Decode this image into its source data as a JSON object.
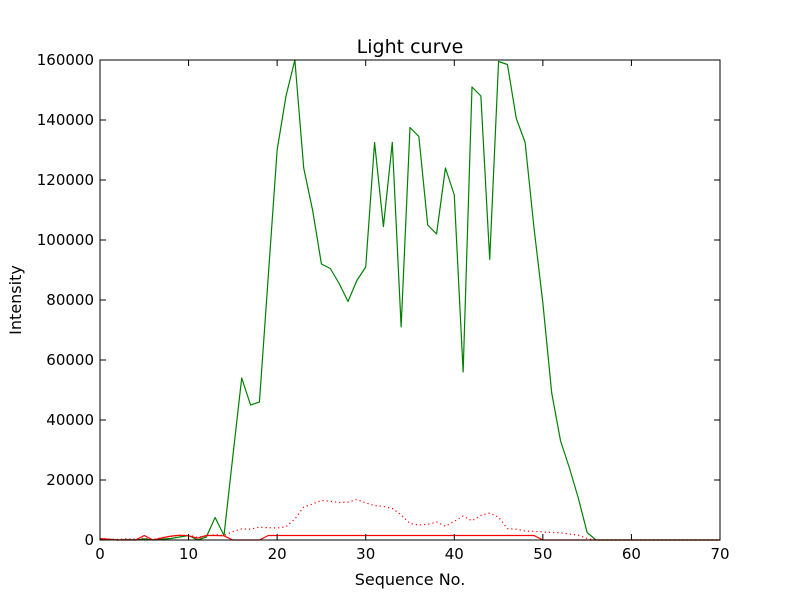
{
  "chart_data": {
    "type": "line",
    "title": "Light curve",
    "xlabel": "Sequence No.",
    "ylabel": "Intensity",
    "xlim": [
      0,
      70
    ],
    "ylim": [
      0,
      160000
    ],
    "x_ticks": [
      0,
      10,
      20,
      30,
      40,
      50,
      60,
      70
    ],
    "y_ticks": [
      0,
      20000,
      40000,
      60000,
      80000,
      100000,
      120000,
      140000,
      160000
    ],
    "grid": false,
    "legend": "none",
    "series": [
      {
        "color": "#008000",
        "style": "solid",
        "x": [
          0,
          1,
          2,
          3,
          4,
          5,
          6,
          7,
          8,
          9,
          10,
          11,
          12,
          13,
          14,
          15,
          16,
          17,
          18,
          19,
          20,
          21,
          22,
          23,
          24,
          25,
          26,
          27,
          28,
          29,
          30,
          31,
          32,
          33,
          34,
          35,
          36,
          37,
          38,
          39,
          40,
          41,
          42,
          43,
          44,
          45,
          46,
          47,
          48,
          49,
          50,
          51,
          52,
          53,
          54,
          55,
          56,
          57,
          58,
          59,
          60,
          61,
          62,
          63,
          64,
          65,
          66,
          67,
          68,
          69,
          70
        ],
        "y": [
          200,
          300,
          0,
          100,
          0,
          400,
          0,
          300,
          500,
          1000,
          1500,
          0,
          1000,
          7500,
          1500,
          28000,
          54000,
          45000,
          46000,
          88000,
          130000,
          148000,
          160000,
          124000,
          110000,
          92000,
          90500,
          85500,
          79500,
          86500,
          91000,
          132500,
          104500,
          132500,
          71000,
          137500,
          134500,
          105000,
          102000,
          124000,
          115000,
          56000,
          151000,
          148000,
          93500,
          159500,
          158500,
          140500,
          132500,
          104000,
          79000,
          49000,
          33000,
          24000,
          14000,
          2500,
          0,
          0,
          0,
          0,
          0,
          0,
          0,
          0,
          0,
          0,
          0,
          0,
          0,
          0,
          0
        ]
      },
      {
        "color": "#ff0000",
        "style": "dotted",
        "x": [
          0,
          1,
          2,
          3,
          4,
          5,
          6,
          7,
          8,
          9,
          10,
          11,
          12,
          13,
          14,
          15,
          16,
          17,
          18,
          19,
          20,
          21,
          22,
          23,
          24,
          25,
          26,
          27,
          28,
          29,
          30,
          31,
          32,
          33,
          34,
          35,
          36,
          37,
          38,
          39,
          40,
          41,
          42,
          43,
          44,
          45,
          46,
          47,
          48,
          49,
          50,
          51,
          52,
          53,
          54,
          55,
          56,
          57,
          58,
          59,
          60,
          61,
          62,
          63,
          64,
          65,
          66,
          67,
          68,
          69,
          70
        ],
        "y": [
          500,
          300,
          200,
          400,
          300,
          600,
          200,
          800,
          1200,
          1500,
          1600,
          900,
          1400,
          1800,
          1500,
          2800,
          3700,
          3600,
          4300,
          4100,
          4000,
          4400,
          7000,
          11000,
          12000,
          13200,
          12900,
          12500,
          12600,
          13500,
          12400,
          11500,
          11200,
          10500,
          8400,
          5500,
          5000,
          5200,
          6000,
          4600,
          6200,
          8000,
          6400,
          8200,
          9000,
          7600,
          3800,
          3600,
          3000,
          2900,
          2700,
          2500,
          2400,
          2000,
          1600,
          500,
          0,
          0,
          0,
          0,
          0,
          0,
          0,
          0,
          0,
          0,
          0,
          0,
          0,
          0,
          0
        ]
      },
      {
        "color": "#ff0000",
        "style": "solid",
        "x": [
          0,
          1,
          2,
          3,
          4,
          5,
          6,
          7,
          8,
          9,
          10,
          11,
          12,
          13,
          14,
          15,
          16,
          17,
          18,
          19,
          20,
          21,
          22,
          23,
          24,
          25,
          26,
          27,
          28,
          29,
          30,
          31,
          32,
          33,
          34,
          35,
          36,
          37,
          38,
          39,
          40,
          41,
          42,
          43,
          44,
          45,
          46,
          47,
          48,
          49,
          50,
          51,
          52,
          53,
          54,
          55,
          56,
          57,
          58,
          59,
          60,
          61,
          62,
          63,
          64,
          65,
          66,
          67,
          68,
          69,
          70
        ],
        "y": [
          500,
          200,
          0,
          0,
          0,
          1500,
          0,
          700,
          1300,
          1600,
          1400,
          600,
          1500,
          1500,
          1400,
          0,
          0,
          0,
          0,
          1500,
          1500,
          1500,
          1500,
          1500,
          1500,
          1500,
          1500,
          1500,
          1500,
          1500,
          1500,
          1500,
          1500,
          1500,
          1500,
          1500,
          1500,
          1500,
          1500,
          1500,
          1500,
          1500,
          1500,
          1500,
          1500,
          1500,
          1500,
          1500,
          1500,
          1500,
          0,
          0,
          0,
          0,
          0,
          0,
          0,
          0,
          0,
          0,
          0,
          0,
          0,
          0,
          0,
          0,
          0,
          0,
          0,
          0,
          0
        ]
      }
    ]
  }
}
